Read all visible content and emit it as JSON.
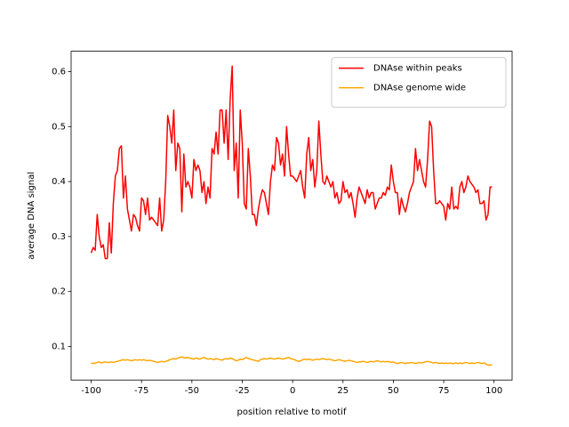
{
  "chart_data": {
    "type": "line",
    "xlabel": "position relative to motif",
    "ylabel": "average DNA signal",
    "x": [
      -100,
      -99,
      -98,
      -97,
      -96,
      -95,
      -94,
      -93,
      -92,
      -91,
      -90,
      -89,
      -88,
      -87,
      -86,
      -85,
      -84,
      -83,
      -82,
      -81,
      -80,
      -79,
      -78,
      -77,
      -76,
      -75,
      -74,
      -73,
      -72,
      -71,
      -70,
      -69,
      -68,
      -67,
      -66,
      -65,
      -64,
      -63,
      -62,
      -61,
      -60,
      -59,
      -58,
      -57,
      -56,
      -55,
      -54,
      -53,
      -52,
      -51,
      -50,
      -49,
      -48,
      -47,
      -46,
      -45,
      -44,
      -43,
      -42,
      -41,
      -40,
      -39,
      -38,
      -37,
      -36,
      -35,
      -34,
      -33,
      -32,
      -31,
      -30,
      -29,
      -28,
      -27,
      -26,
      -25,
      -24,
      -23,
      -22,
      -21,
      -20,
      -19,
      -18,
      -17,
      -16,
      -15,
      -14,
      -13,
      -12,
      -11,
      -10,
      -9,
      -8,
      -7,
      -6,
      -5,
      -4,
      -3,
      -2,
      -1,
      0,
      1,
      2,
      3,
      4,
      5,
      6,
      7,
      8,
      9,
      10,
      11,
      12,
      13,
      14,
      15,
      16,
      17,
      18,
      19,
      20,
      21,
      22,
      23,
      24,
      25,
      26,
      27,
      28,
      29,
      30,
      31,
      32,
      33,
      34,
      35,
      36,
      37,
      38,
      39,
      40,
      41,
      42,
      43,
      44,
      45,
      46,
      47,
      48,
      49,
      50,
      51,
      52,
      53,
      54,
      55,
      56,
      57,
      58,
      59,
      60,
      61,
      62,
      63,
      64,
      65,
      66,
      67,
      68,
      69,
      70,
      71,
      72,
      73,
      74,
      75,
      76,
      77,
      78,
      79,
      80,
      81,
      82,
      83,
      84,
      85,
      86,
      87,
      88,
      89,
      90,
      91,
      92,
      93,
      94,
      95,
      96,
      97,
      98,
      99
    ],
    "series": [
      {
        "name": "DNAse within peaks",
        "color": "#ff0000",
        "values": [
          0.27,
          0.28,
          0.275,
          0.34,
          0.3,
          0.28,
          0.285,
          0.26,
          0.26,
          0.325,
          0.27,
          0.36,
          0.41,
          0.42,
          0.46,
          0.465,
          0.37,
          0.41,
          0.35,
          0.33,
          0.31,
          0.34,
          0.335,
          0.32,
          0.31,
          0.37,
          0.365,
          0.34,
          0.37,
          0.33,
          0.335,
          0.33,
          0.325,
          0.32,
          0.37,
          0.31,
          0.33,
          0.4,
          0.52,
          0.5,
          0.47,
          0.53,
          0.42,
          0.47,
          0.46,
          0.345,
          0.45,
          0.39,
          0.4,
          0.39,
          0.37,
          0.44,
          0.42,
          0.43,
          0.42,
          0.38,
          0.4,
          0.36,
          0.39,
          0.37,
          0.46,
          0.45,
          0.49,
          0.45,
          0.53,
          0.53,
          0.47,
          0.53,
          0.44,
          0.55,
          0.61,
          0.42,
          0.47,
          0.37,
          0.53,
          0.47,
          0.36,
          0.35,
          0.46,
          0.41,
          0.34,
          0.34,
          0.32,
          0.35,
          0.37,
          0.385,
          0.38,
          0.36,
          0.34,
          0.4,
          0.43,
          0.42,
          0.48,
          0.47,
          0.43,
          0.45,
          0.41,
          0.5,
          0.45,
          0.41,
          0.41,
          0.405,
          0.4,
          0.41,
          0.42,
          0.39,
          0.37,
          0.45,
          0.48,
          0.42,
          0.44,
          0.39,
          0.42,
          0.51,
          0.45,
          0.4,
          0.395,
          0.41,
          0.4,
          0.39,
          0.4,
          0.37,
          0.38,
          0.36,
          0.365,
          0.4,
          0.38,
          0.385,
          0.37,
          0.38,
          0.36,
          0.335,
          0.37,
          0.39,
          0.38,
          0.37,
          0.36,
          0.385,
          0.37,
          0.38,
          0.38,
          0.35,
          0.36,
          0.37,
          0.37,
          0.38,
          0.375,
          0.39,
          0.385,
          0.43,
          0.4,
          0.38,
          0.38,
          0.34,
          0.37,
          0.355,
          0.345,
          0.36,
          0.38,
          0.39,
          0.4,
          0.46,
          0.42,
          0.44,
          0.42,
          0.4,
          0.39,
          0.44,
          0.51,
          0.5,
          0.42,
          0.36,
          0.36,
          0.365,
          0.36,
          0.355,
          0.33,
          0.36,
          0.35,
          0.39,
          0.35,
          0.355,
          0.35,
          0.39,
          0.4,
          0.38,
          0.39,
          0.41,
          0.4,
          0.395,
          0.39,
          0.38,
          0.385,
          0.36,
          0.36,
          0.365,
          0.33,
          0.34,
          0.39,
          0.39
        ]
      },
      {
        "name": "DNAse genome wide",
        "color": "#ffa500",
        "values": [
          0.07,
          0.069,
          0.07,
          0.071,
          0.072,
          0.07,
          0.071,
          0.072,
          0.071,
          0.071,
          0.072,
          0.071,
          0.072,
          0.073,
          0.074,
          0.075,
          0.076,
          0.075,
          0.076,
          0.075,
          0.074,
          0.075,
          0.076,
          0.075,
          0.076,
          0.075,
          0.076,
          0.075,
          0.074,
          0.075,
          0.074,
          0.073,
          0.072,
          0.071,
          0.072,
          0.073,
          0.072,
          0.073,
          0.074,
          0.076,
          0.077,
          0.078,
          0.077,
          0.079,
          0.08,
          0.081,
          0.08,
          0.079,
          0.08,
          0.079,
          0.078,
          0.077,
          0.079,
          0.078,
          0.077,
          0.079,
          0.08,
          0.078,
          0.077,
          0.078,
          0.077,
          0.076,
          0.078,
          0.077,
          0.076,
          0.075,
          0.077,
          0.078,
          0.077,
          0.079,
          0.078,
          0.076,
          0.074,
          0.075,
          0.077,
          0.076,
          0.078,
          0.08,
          0.078,
          0.077,
          0.076,
          0.075,
          0.074,
          0.073,
          0.076,
          0.077,
          0.078,
          0.077,
          0.078,
          0.079,
          0.078,
          0.077,
          0.078,
          0.079,
          0.078,
          0.077,
          0.078,
          0.079,
          0.08,
          0.078,
          0.077,
          0.076,
          0.074,
          0.073,
          0.074,
          0.076,
          0.077,
          0.076,
          0.077,
          0.076,
          0.075,
          0.076,
          0.077,
          0.076,
          0.077,
          0.078,
          0.077,
          0.076,
          0.077,
          0.076,
          0.075,
          0.074,
          0.075,
          0.076,
          0.075,
          0.074,
          0.073,
          0.074,
          0.075,
          0.074,
          0.073,
          0.072,
          0.071,
          0.072,
          0.072,
          0.073,
          0.072,
          0.071,
          0.072,
          0.073,
          0.072,
          0.073,
          0.074,
          0.073,
          0.072,
          0.073,
          0.072,
          0.073,
          0.072,
          0.071,
          0.072,
          0.07,
          0.069,
          0.07,
          0.071,
          0.07,
          0.069,
          0.07,
          0.07,
          0.071,
          0.07,
          0.069,
          0.07,
          0.071,
          0.07,
          0.071,
          0.072,
          0.073,
          0.072,
          0.071,
          0.07,
          0.071,
          0.07,
          0.069,
          0.07,
          0.069,
          0.07,
          0.069,
          0.07,
          0.069,
          0.069,
          0.07,
          0.069,
          0.07,
          0.069,
          0.07,
          0.071,
          0.07,
          0.069,
          0.07,
          0.069,
          0.07,
          0.071,
          0.07,
          0.069,
          0.07,
          0.068,
          0.066,
          0.066,
          0.067
        ]
      }
    ],
    "xlim": [
      -109.95,
      108.95
    ],
    "ylim": [
      0.039,
      0.637
    ],
    "xticks": [
      -100,
      -75,
      -50,
      -25,
      0,
      25,
      50,
      75,
      100
    ],
    "yticks": [
      0.1,
      0.2,
      0.3,
      0.4,
      0.5,
      0.6
    ],
    "legend": "upper right"
  }
}
